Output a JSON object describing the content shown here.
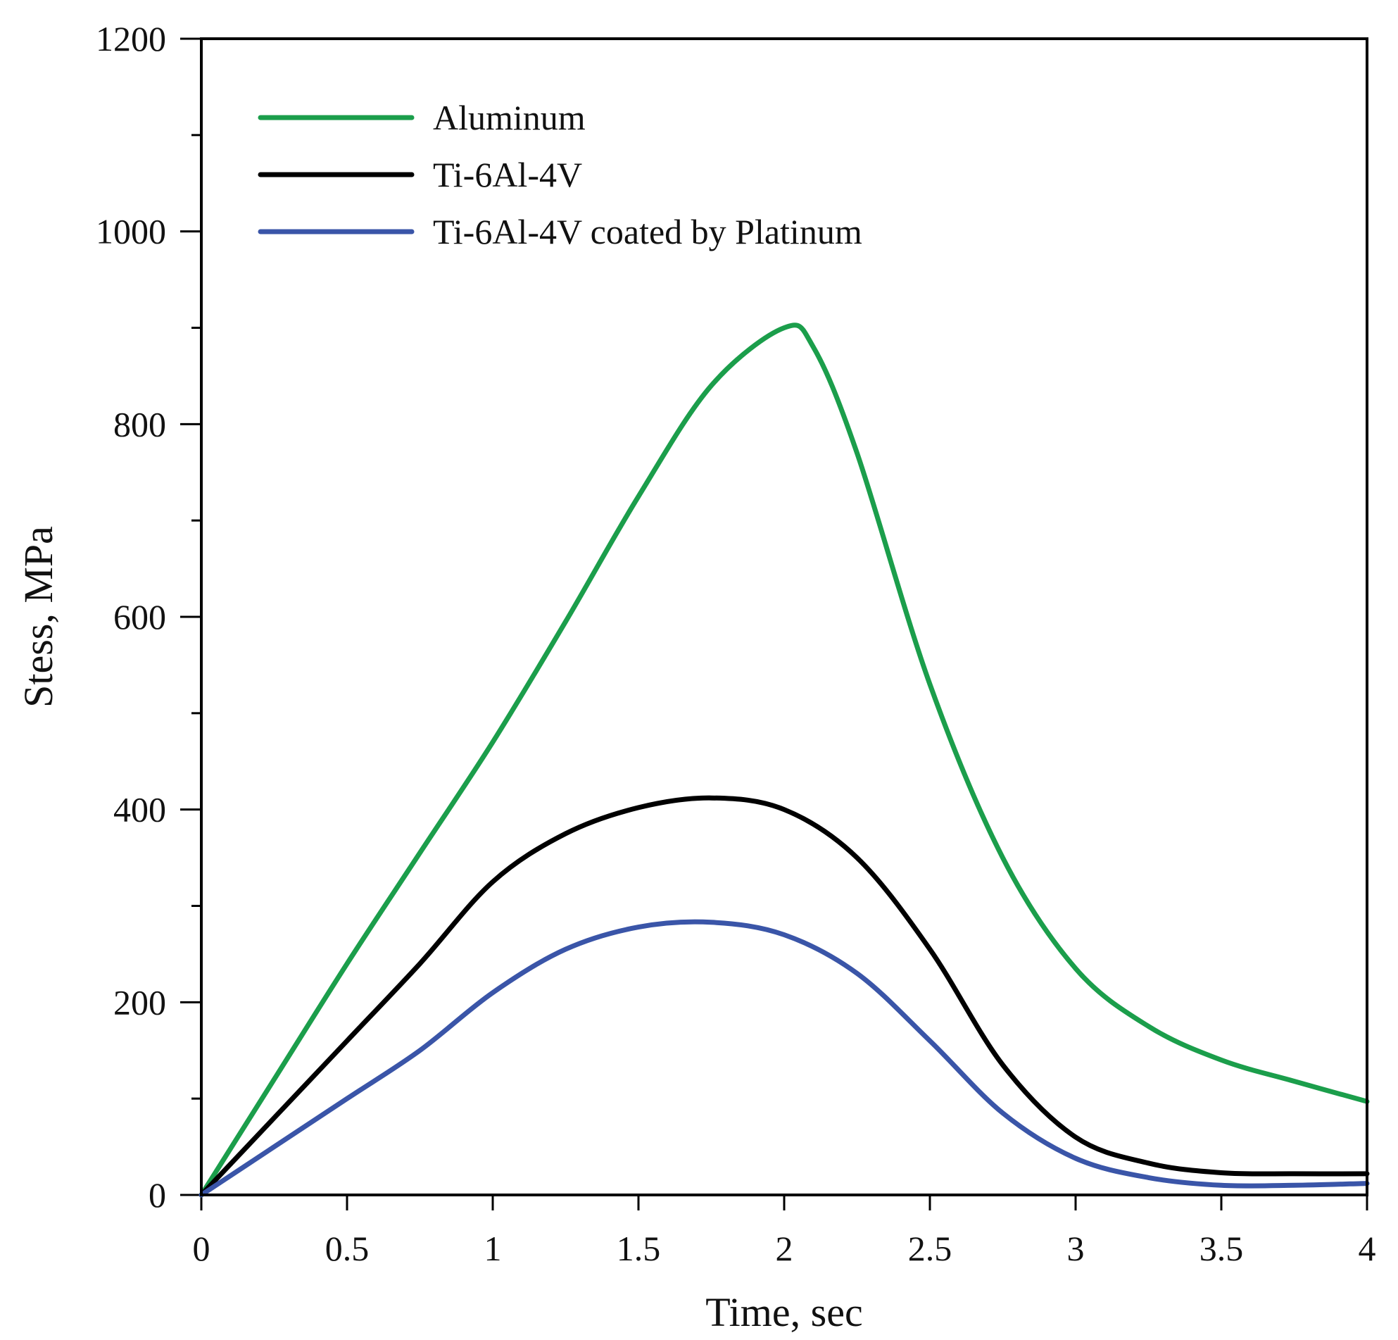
{
  "chart_data": {
    "type": "line",
    "title": "",
    "xlabel": "Time, sec",
    "ylabel": "Stess, MPa",
    "xlim": [
      0,
      4
    ],
    "ylim": [
      0,
      1200
    ],
    "grid": false,
    "legend_position": "top-left",
    "x_ticks": [
      0,
      0.5,
      1,
      1.5,
      2,
      2.5,
      3,
      3.5,
      4
    ],
    "x_tick_labels": [
      "0",
      "0.5",
      "1",
      "1.5",
      "2",
      "2.5",
      "3",
      "3.5",
      "4"
    ],
    "y_ticks": [
      0,
      200,
      400,
      600,
      800,
      1000,
      1200
    ],
    "y_tick_labels": [
      "0",
      "200",
      "400",
      "600",
      "800",
      "1000",
      "1200"
    ],
    "y_minor_ticks": [
      100,
      300,
      500,
      700,
      900,
      1100
    ],
    "series": [
      {
        "name": "Aluminum",
        "color": "#1b9e4b",
        "x": [
          0,
          0.25,
          0.5,
          0.75,
          1.0,
          1.25,
          1.5,
          1.75,
          2.0,
          2.1,
          2.25,
          2.5,
          2.75,
          3.0,
          3.25,
          3.5,
          3.75,
          4.0
        ],
        "y": [
          0,
          120,
          240,
          355,
          470,
          595,
          725,
          840,
          900,
          880,
          770,
          530,
          350,
          235,
          175,
          140,
          118,
          97
        ]
      },
      {
        "name": "Ti-6Al-4V",
        "color": "#000000",
        "x": [
          0,
          0.25,
          0.5,
          0.75,
          1.0,
          1.25,
          1.5,
          1.75,
          2.0,
          2.25,
          2.5,
          2.75,
          3.0,
          3.25,
          3.5,
          3.75,
          4.0
        ],
        "y": [
          0,
          80,
          160,
          240,
          325,
          375,
          402,
          412,
          400,
          350,
          255,
          135,
          60,
          33,
          23,
          22,
          22
        ]
      },
      {
        "name": "Ti-6Al-4V coated by Platinum",
        "color": "#3a55a8",
        "x": [
          0,
          0.25,
          0.5,
          0.75,
          1.0,
          1.25,
          1.5,
          1.75,
          2.0,
          2.25,
          2.5,
          2.75,
          3.0,
          3.25,
          3.5,
          3.75,
          4.0
        ],
        "y": [
          0,
          50,
          100,
          150,
          210,
          255,
          278,
          283,
          270,
          230,
          160,
          85,
          38,
          18,
          10,
          10,
          12
        ]
      }
    ]
  }
}
